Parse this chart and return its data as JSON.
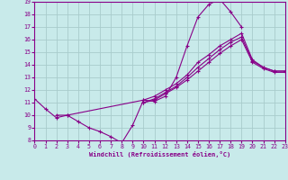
{
  "xlabel": "Windchill (Refroidissement éolien,°C)",
  "bg_color": "#c8eaea",
  "line_color": "#880088",
  "grid_color": "#a8cccc",
  "xlim": [
    0,
    23
  ],
  "ylim": [
    8,
    19
  ],
  "xticks": [
    0,
    1,
    2,
    3,
    4,
    5,
    6,
    7,
    8,
    9,
    10,
    11,
    12,
    13,
    14,
    15,
    16,
    17,
    18,
    19,
    20,
    21,
    22,
    23
  ],
  "yticks": [
    8,
    9,
    10,
    11,
    12,
    13,
    14,
    15,
    16,
    17,
    18,
    19
  ],
  "lines": [
    {
      "x": [
        0,
        1,
        2,
        3,
        4,
        5,
        6,
        7,
        8,
        9,
        10,
        11,
        12,
        13,
        14,
        15,
        16,
        17,
        18,
        19
      ],
      "y": [
        11.3,
        10.5,
        9.8,
        10.0,
        9.5,
        9.0,
        8.7,
        8.3,
        7.8,
        9.2,
        11.2,
        11.1,
        11.5,
        13.0,
        15.5,
        17.8,
        18.8,
        19.2,
        18.2,
        17.0
      ]
    },
    {
      "x": [
        2,
        3,
        10,
        11,
        12,
        13,
        14,
        15,
        16,
        17,
        18,
        19,
        20,
        21,
        22,
        23
      ],
      "y": [
        10.0,
        10.0,
        11.2,
        11.5,
        12.0,
        12.5,
        13.2,
        14.2,
        14.8,
        15.5,
        16.0,
        16.5,
        14.4,
        13.8,
        13.5,
        13.5
      ]
    },
    {
      "x": [
        10,
        11,
        12,
        13,
        14,
        15,
        16,
        17,
        18,
        19,
        20,
        21,
        22,
        23
      ],
      "y": [
        11.0,
        11.3,
        11.8,
        12.3,
        13.0,
        13.8,
        14.5,
        15.2,
        15.8,
        16.2,
        14.3,
        13.8,
        13.5,
        13.5
      ]
    },
    {
      "x": [
        10,
        11,
        12,
        13,
        14,
        15,
        16,
        17,
        18,
        19,
        20,
        21,
        22,
        23
      ],
      "y": [
        11.0,
        11.2,
        11.7,
        12.2,
        12.8,
        13.5,
        14.2,
        14.9,
        15.5,
        16.0,
        14.2,
        13.7,
        13.4,
        13.4
      ]
    }
  ]
}
